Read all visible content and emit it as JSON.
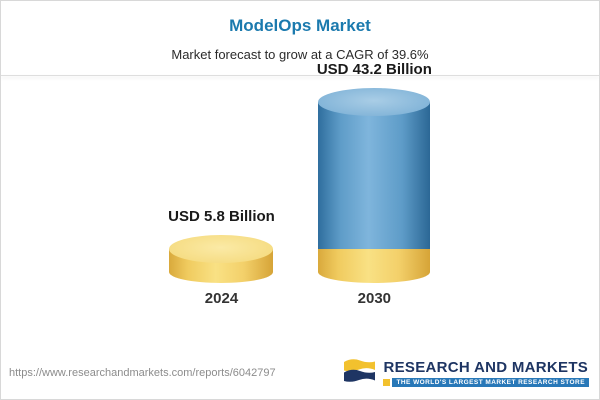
{
  "header": {
    "title": "ModelOps Market",
    "subtitle": "Market forecast to grow at a CAGR of 39.6%"
  },
  "chart_data": {
    "type": "bar",
    "style": "3d-cylinder",
    "title": "ModelOps Market",
    "subtitle": "Market forecast to grow at a CAGR of 39.6%",
    "cagr": "39.6%",
    "unit": "USD Billion",
    "categories": [
      "2024",
      "2030"
    ],
    "values": [
      5.8,
      43.2
    ],
    "bars": [
      {
        "category": "2024",
        "value": 5.8,
        "value_label": "USD 5.8 Billion",
        "color": "#f2cd62"
      },
      {
        "category": "2030",
        "value": 43.2,
        "value_label": "USD 43.2 Billion",
        "color": "#5b9bd5",
        "base_value": 5.8,
        "base_color": "#f2cd62"
      }
    ],
    "legend": "off",
    "grid": "off",
    "ylim": [
      0,
      43.2
    ]
  },
  "footer": {
    "url": "https://www.researchandmarkets.com/reports/6042797",
    "brand_name": "RESEARCH AND MARKETS",
    "brand_tagline": "THE WORLD'S LARGEST MARKET RESEARCH STORE"
  },
  "colors": {
    "title_blue": "#1b7aae",
    "cylinder_yellow": "#f2cd62",
    "cylinder_blue": "#5b9bd5",
    "brand_navy": "#1e3563",
    "tagline_blue": "#2878b8",
    "tagline_yellow": "#f2c12e"
  }
}
